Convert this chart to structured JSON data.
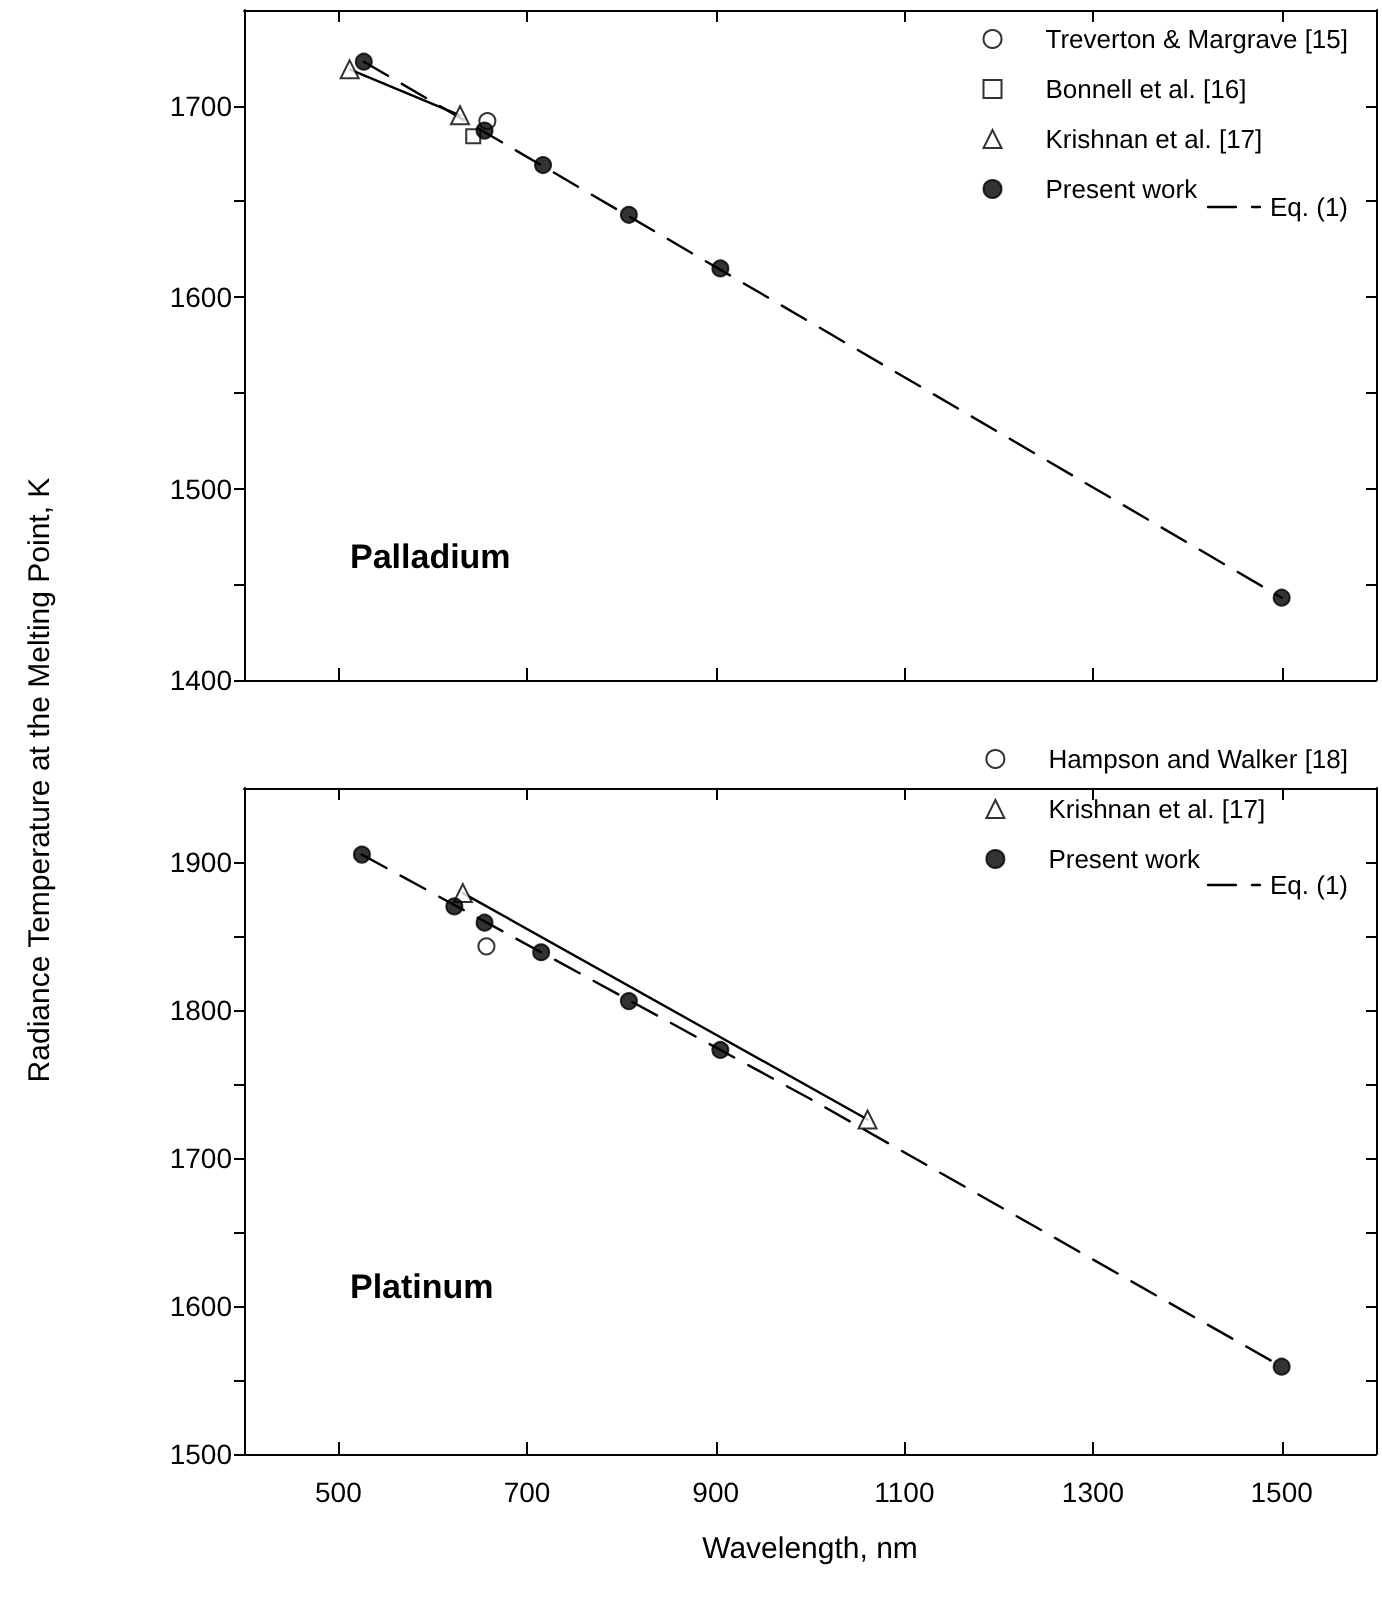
{
  "chart_data": [
    {
      "type": "scatter",
      "ylabel": "Radiance Temperature at the Melting Point, K",
      "annotations": [
        "Palladium"
      ],
      "xlim": [
        400,
        1600
      ],
      "xticks": [
        500,
        700,
        900,
        1100,
        1300,
        1500
      ],
      "ylim": [
        1400,
        1750
      ],
      "yticks": [
        1400,
        {
          "value": 1450,
          "label": null
        },
        1500,
        {
          "value": 1550,
          "label": null
        },
        1600,
        {
          "value": 1650,
          "label": null
        },
        1700
      ],
      "tick_labels": "y",
      "grid": false,
      "legend": "top right",
      "series": [
        {
          "name": "Treverton & Margrave [15]",
          "marker": "circle",
          "color": "#ffffff",
          "x": [
            658
          ],
          "values": [
            1692
          ]
        },
        {
          "name": "Bonnell et al. [16]",
          "marker": "square",
          "color": "#ffffff",
          "x": [
            643
          ],
          "values": [
            1684
          ]
        },
        {
          "type": "line",
          "marker": "none",
          "line_style": "solid",
          "color": "#000000",
          "x": [
            512,
            629
          ],
          "values": [
            1719,
            1695
          ]
        },
        {
          "name": "Krishnan et al. [17]",
          "marker": "triangle",
          "color": "#ffffff",
          "x": [
            512,
            629
          ],
          "values": [
            1719,
            1695
          ]
        },
        {
          "name": "Present work",
          "marker": "circle",
          "color": "#000000",
          "x": [
            527,
            655,
            717,
            808,
            905,
            1500
          ],
          "values": [
            1723,
            1687,
            1669,
            1643,
            1615,
            1443
          ]
        },
        {
          "name": "Eq. (1)",
          "type": "line",
          "marker": "none",
          "line_style": "dashed",
          "color": "#000000",
          "x": [
            527,
            1000,
            1500
          ],
          "values": [
            1723,
            1587,
            1443
          ]
        }
      ]
    },
    {
      "type": "scatter",
      "xlabel": "Wavelength, nm",
      "annotations": [
        "Platinum"
      ],
      "xlim": [
        400,
        1600
      ],
      "xticks": [
        500,
        700,
        900,
        1100,
        1300,
        1500
      ],
      "ylim": [
        1500,
        1950
      ],
      "yticks": [
        1500,
        {
          "value": 1550,
          "label": null
        },
        1600,
        {
          "value": 1650,
          "label": null
        },
        1700,
        {
          "value": 1750,
          "label": null
        },
        1800,
        {
          "value": 1850,
          "label": null
        },
        1900
      ],
      "grid": false,
      "legend": "top right",
      "series": [
        {
          "name": "Hampson and Walker [18]",
          "marker": "circle",
          "color": "#ffffff",
          "x": [
            657
          ],
          "values": [
            1843
          ]
        },
        {
          "type": "line",
          "marker": "none",
          "line_style": "solid",
          "color": "#000000",
          "x": [
            632,
            1061
          ],
          "values": [
            1879,
            1726
          ]
        },
        {
          "name": "Krishnan et al. [17]",
          "marker": "triangle",
          "color": "#ffffff",
          "x": [
            632,
            1061
          ],
          "values": [
            1879,
            1726
          ]
        },
        {
          "name": "Present work",
          "marker": "circle",
          "color": "#000000",
          "x": [
            525,
            623,
            655,
            715,
            808,
            905,
            1500
          ],
          "values": [
            1905,
            1870,
            1859,
            1839,
            1806,
            1773,
            1559
          ]
        },
        {
          "name": "Eq. (1)",
          "type": "line",
          "marker": "none",
          "line_style": "dashed",
          "color": "#000000",
          "x": [
            525,
            1000,
            1500
          ],
          "values": [
            1905,
            1740,
            1559
          ]
        }
      ]
    }
  ]
}
